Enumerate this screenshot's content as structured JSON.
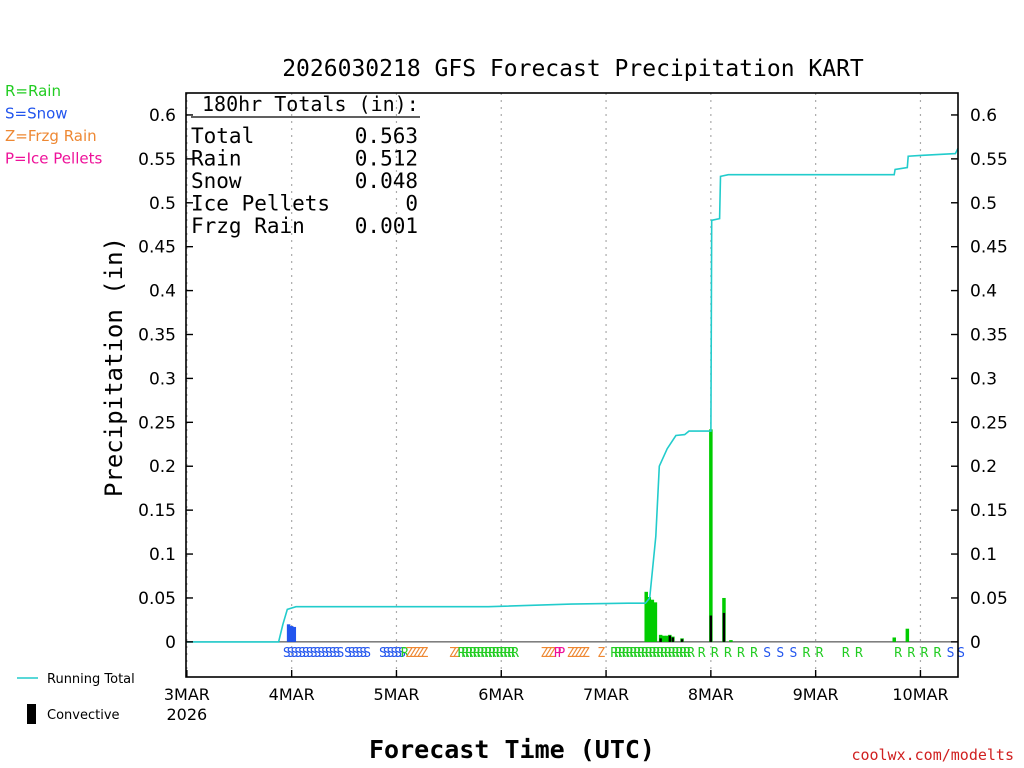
{
  "chart_data": {
    "type": "bar",
    "title": "2026030218 GFS Forecast Precipitation KART",
    "xlabel": "Forecast Time (UTC)",
    "ylabel": "Precipitation  (in)",
    "ylim": [
      -0.04,
      0.625
    ],
    "yticks": [
      "0",
      "0.05",
      "0.1",
      "0.15",
      "0.2",
      "0.25",
      "0.3",
      "0.35",
      "0.4",
      "0.45",
      "0.5",
      "0.55",
      "0.6"
    ],
    "xlim_hours": [
      -0.2,
      176.6
    ],
    "x_ticks": [
      {
        "label": "3MAR",
        "sub": "2026",
        "hour": 0
      },
      {
        "label": "4MAR",
        "hour": 24
      },
      {
        "label": "5MAR",
        "hour": 48
      },
      {
        "label": "6MAR",
        "hour": 72
      },
      {
        "label": "7MAR",
        "hour": 96
      },
      {
        "label": "8MAR",
        "hour": 120
      },
      {
        "label": "9MAR",
        "hour": 144
      },
      {
        "label": "10MAR",
        "hour": 168
      }
    ],
    "totals_box": {
      "header": "180hr Totals (in):",
      "rows": [
        {
          "label": "Total",
          "value": "0.563"
        },
        {
          "label": "Rain",
          "value": "0.512"
        },
        {
          "label": "Snow",
          "value": "0.048"
        },
        {
          "label": "Ice Pellets",
          "value": "0"
        },
        {
          "label": "Frzg Rain",
          "value": "0.001"
        }
      ]
    },
    "ptype_legend": [
      {
        "text": "R=Rain",
        "color": "#22cc22"
      },
      {
        "text": "S=Snow",
        "color": "#2255ee"
      },
      {
        "text": "Z=Frzg Rain",
        "color": "#ee8833"
      },
      {
        "text": "P=Ice Pellets",
        "color": "#ee1199"
      }
    ],
    "series_legend": [
      {
        "name": "Running Total",
        "type": "line",
        "color": "#22cccc"
      },
      {
        "name": "Convective",
        "type": "bar",
        "color": "#000000"
      }
    ],
    "running_total": [
      [
        0,
        0
      ],
      [
        21,
        0
      ],
      [
        22,
        0.02
      ],
      [
        23,
        0.037
      ],
      [
        25,
        0.04
      ],
      [
        60,
        0.04
      ],
      [
        69,
        0.04
      ],
      [
        88,
        0.043
      ],
      [
        101,
        0.044
      ],
      [
        105,
        0.044
      ],
      [
        106,
        0.05
      ],
      [
        107.4,
        0.12
      ],
      [
        108.2,
        0.2
      ],
      [
        110,
        0.22
      ],
      [
        112,
        0.235
      ],
      [
        114,
        0.236
      ],
      [
        115,
        0.24
      ],
      [
        120,
        0.24
      ],
      [
        120.2,
        0.48
      ],
      [
        122,
        0.482
      ],
      [
        122.2,
        0.53
      ],
      [
        124,
        0.532
      ],
      [
        159,
        0.532
      ],
      [
        162,
        0.532
      ],
      [
        162.2,
        0.538
      ],
      [
        165,
        0.54
      ],
      [
        165.2,
        0.553
      ],
      [
        168,
        0.554
      ],
      [
        176,
        0.556
      ],
      [
        176.6,
        0.562
      ]
    ],
    "precip_bars": [
      {
        "hour": 23.3,
        "value": 0.02,
        "type": "snow"
      },
      {
        "hour": 24.0,
        "value": 0.018,
        "type": "snow"
      },
      {
        "hour": 24.6,
        "value": 0.017,
        "type": "snow"
      },
      {
        "hour": 105.2,
        "value": 0.057,
        "type": "rain"
      },
      {
        "hour": 105.9,
        "value": 0.051,
        "type": "rain"
      },
      {
        "hour": 106.6,
        "value": 0.048,
        "type": "rain"
      },
      {
        "hour": 107.3,
        "value": 0.045,
        "type": "rain"
      },
      {
        "hour": 108.5,
        "value": 0.008,
        "type": "rain"
      },
      {
        "hour": 109.2,
        "value": 0.007,
        "type": "rain"
      },
      {
        "hour": 109.9,
        "value": 0.007,
        "type": "rain"
      },
      {
        "hour": 110.6,
        "value": 0.008,
        "type": "rain"
      },
      {
        "hour": 111.3,
        "value": 0.006,
        "type": "rain"
      },
      {
        "hour": 113.4,
        "value": 0.004,
        "type": "rain"
      },
      {
        "hour": 120.0,
        "value": 0.242,
        "type": "rain"
      },
      {
        "hour": 123.0,
        "value": 0.05,
        "type": "rain"
      },
      {
        "hour": 124.6,
        "value": 0.002,
        "type": "rain"
      },
      {
        "hour": 162.0,
        "value": 0.005,
        "type": "rain"
      },
      {
        "hour": 165.0,
        "value": 0.015,
        "type": "rain"
      }
    ],
    "convective_bars": [
      {
        "hour": 108.5,
        "value": 0.004
      },
      {
        "hour": 110.6,
        "value": 0.007
      },
      {
        "hour": 111.3,
        "value": 0.005
      },
      {
        "hour": 113.4,
        "value": 0.003
      },
      {
        "hour": 120.0,
        "value": 0.03
      },
      {
        "hour": 123.0,
        "value": 0.033
      }
    ],
    "ptype_markers": [
      {
        "hour": 22.0,
        "text": "SSSSSSSSSSSSSSS",
        "color": "#2255ee"
      },
      {
        "hour": 36.0,
        "text": "SSSSSS",
        "color": "#2255ee"
      },
      {
        "hour": 44.0,
        "text": "SSSSSS",
        "color": "#2255ee"
      },
      {
        "hour": 49.0,
        "text": "R",
        "color": "#22cc22"
      },
      {
        "hour": 50.0,
        "text": "ZZZZZ",
        "color": "#ee8833"
      },
      {
        "hour": 60.0,
        "text": "ZZ",
        "color": "#ee8833"
      },
      {
        "hour": 62.0,
        "text": "RRRRRRRRRRRRRRR",
        "color": "#22cc22"
      },
      {
        "hour": 81.0,
        "text": "ZZZ",
        "color": "#ee8833"
      },
      {
        "hour": 84.0,
        "text": "PP",
        "color": "#ee1199"
      },
      {
        "hour": 87.0,
        "text": "ZZZZZ",
        "color": "#ee8833"
      },
      {
        "hour": 94.0,
        "text": "Z",
        "color": "#ee8833"
      },
      {
        "hour": 97.0,
        "text": "RRRRRRRRRRRRRRRRRRRRR",
        "color": "#22cc22"
      },
      {
        "hour": 117.0,
        "text": "R",
        "color": "#22cc22"
      },
      {
        "hour": 120.0,
        "text": "R",
        "color": "#22cc22"
      },
      {
        "hour": 123.0,
        "text": "R",
        "color": "#22cc22"
      },
      {
        "hour": 126.0,
        "text": "R",
        "color": "#22cc22"
      },
      {
        "hour": 129.0,
        "text": "R",
        "color": "#22cc22"
      },
      {
        "hour": 132.0,
        "text": "S",
        "color": "#2255ee"
      },
      {
        "hour": 135.0,
        "text": "S",
        "color": "#2255ee"
      },
      {
        "hour": 138.0,
        "text": "S",
        "color": "#2255ee"
      },
      {
        "hour": 141.0,
        "text": "R",
        "color": "#22cc22"
      },
      {
        "hour": 144.0,
        "text": "R",
        "color": "#22cc22"
      },
      {
        "hour": 150.0,
        "text": "R",
        "color": "#22cc22"
      },
      {
        "hour": 153.0,
        "text": "R",
        "color": "#22cc22"
      },
      {
        "hour": 162.0,
        "text": "R",
        "color": "#22cc22"
      },
      {
        "hour": 165.0,
        "text": "R",
        "color": "#22cc22"
      },
      {
        "hour": 168.0,
        "text": "R",
        "color": "#22cc22"
      },
      {
        "hour": 171.0,
        "text": "R",
        "color": "#22cc22"
      },
      {
        "hour": 174.0,
        "text": "S",
        "color": "#2255ee"
      },
      {
        "hour": 176.4,
        "text": "S",
        "color": "#2255ee"
      }
    ],
    "colors": {
      "rain": "#00cc00",
      "snow": "#2255ee",
      "convective": "#000000",
      "running_total": "#22cccc",
      "grid": "#aaaaaa"
    }
  },
  "footer": "coolwx.com/modelts"
}
